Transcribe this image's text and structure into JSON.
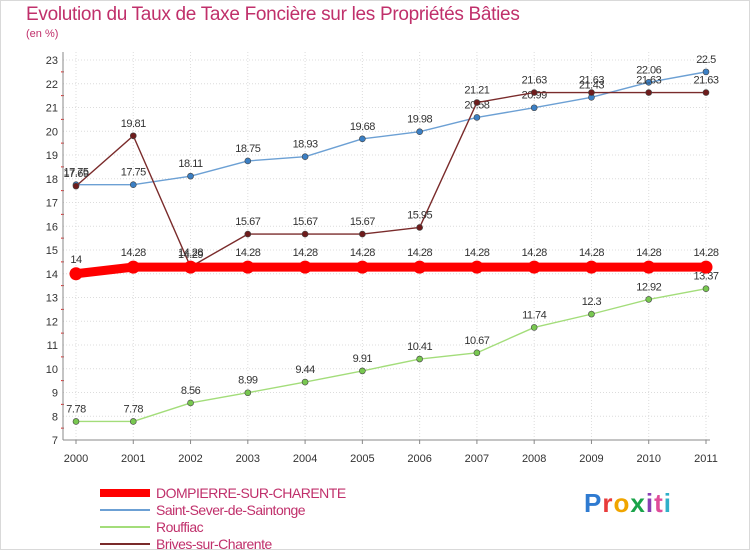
{
  "title": "Evolution du Taux de Taxe Foncière sur les Propriétés Bâties",
  "unit_label": "(en %)",
  "brand": {
    "text": "Proxiti",
    "colors": [
      "#2f7bd1",
      "#e83b3b",
      "#f0a500",
      "#1aa34a",
      "#8a3fb5",
      "#e04c9a",
      "#2fb0c9"
    ]
  },
  "chart_data": {
    "type": "line",
    "title": "Evolution du Taux de Taxe Foncière sur les Propriétés Bâties",
    "ylabel": "(en %)",
    "xlabel": "",
    "x": [
      "2000",
      "2001",
      "2002",
      "2003",
      "2004",
      "2005",
      "2006",
      "2007",
      "2008",
      "2009",
      "2010",
      "2011"
    ],
    "ylim": [
      7,
      23
    ],
    "yticks": [
      "7",
      "8",
      "9",
      "10",
      "11",
      "12",
      "13",
      "14",
      "15",
      "16",
      "17",
      "18",
      "19",
      "20",
      "21",
      "22",
      "23"
    ],
    "grid": true,
    "legend_position": "bottom-left",
    "series": [
      {
        "name": "Saint-Sever-de-Saintonge",
        "color": "#6ca0d4",
        "marker": "#3b7fc4",
        "values": [
          17.75,
          17.75,
          18.11,
          18.75,
          18.93,
          19.68,
          19.98,
          20.58,
          20.99,
          21.43,
          22.06,
          22.5
        ],
        "labels": [
          "17.75",
          "17.75",
          "18.11",
          "18.75",
          "18.93",
          "19.68",
          "19.98",
          "20.58",
          "20.99",
          "21.43",
          "22.06",
          "22.5"
        ]
      },
      {
        "name": "Rouffiac",
        "color": "#a3dd7a",
        "marker": "#78c850",
        "values": [
          7.78,
          7.78,
          8.56,
          8.99,
          9.44,
          9.91,
          10.41,
          10.67,
          11.74,
          12.3,
          12.92,
          13.37
        ],
        "labels": [
          "7.78",
          "7.78",
          "8.56",
          "8.99",
          "9.44",
          "9.91",
          "10.41",
          "10.67",
          "11.74",
          "12.3",
          "12.92",
          "13.37"
        ]
      },
      {
        "name": "Brives-sur-Charente",
        "color": "#7a2b2b",
        "marker": "#6e1c1c",
        "values": [
          17.69,
          19.81,
          14.29,
          15.67,
          15.67,
          15.67,
          15.95,
          21.21,
          21.63,
          21.63,
          21.63,
          21.63
        ],
        "labels": [
          "17.69",
          "19.81",
          "14.29",
          "15.67",
          "15.67",
          "15.67",
          "15.95",
          "21.21",
          "21.63",
          "21.63",
          "21.63",
          "21.63"
        ]
      },
      {
        "name": "DOMPIERRE-SUR-CHARENTE",
        "color": "#ff0000",
        "marker": "#ff0000",
        "values": [
          14,
          14.28,
          14.28,
          14.28,
          14.28,
          14.28,
          14.28,
          14.28,
          14.28,
          14.28,
          14.28,
          14.28
        ],
        "labels": [
          "14",
          "14.28",
          "14.28",
          "14.28",
          "14.28",
          "14.28",
          "14.28",
          "14.28",
          "14.28",
          "14.28",
          "14.28",
          "14.28"
        ]
      }
    ],
    "legend": [
      "DOMPIERRE-SUR-CHARENTE",
      "Saint-Sever-de-Saintonge",
      "Rouffiac",
      "Brives-sur-Charente"
    ]
  }
}
